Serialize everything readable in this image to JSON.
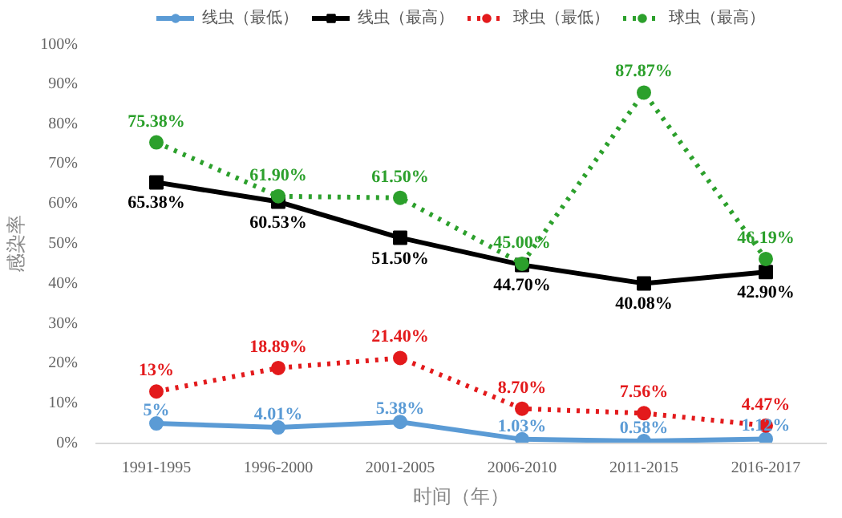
{
  "chart_data": {
    "type": "line",
    "xlabel": "时间（年）",
    "ylabel": "感染率",
    "categories": [
      "1991-1995",
      "1996-2000",
      "2001-2005",
      "2006-2010",
      "2011-2015",
      "2016-2017"
    ],
    "series": [
      {
        "name": "线虫（最低）",
        "color": "#5b9bd5",
        "marker": "circle",
        "line_style": "solid",
        "values": [
          5,
          4.01,
          5.38,
          1.03,
          0.58,
          1.12
        ],
        "value_labels": [
          "5%",
          "4.01%",
          "5.38%",
          "1.03%",
          "0.58%",
          "1.12%"
        ]
      },
      {
        "name": "线虫（最高）",
        "color": "#000000",
        "marker": "square",
        "line_style": "solid",
        "values": [
          65.38,
          60.53,
          51.5,
          44.7,
          40.08,
          42.9
        ],
        "value_labels": [
          "65.38%",
          "60.53%",
          "51.50%",
          "44.70%",
          "40.08%",
          "42.90%"
        ]
      },
      {
        "name": "球虫（最低）",
        "color": "#e31a1c",
        "marker": "circle",
        "line_style": "dotted",
        "values": [
          13,
          18.89,
          21.4,
          8.7,
          7.56,
          4.47
        ],
        "value_labels": [
          "13%",
          "18.89%",
          "21.40%",
          "8.70%",
          "7.56%",
          "4.47%"
        ]
      },
      {
        "name": "球虫（最高）",
        "color": "#2ca02c",
        "marker": "circle",
        "line_style": "dotted",
        "values": [
          75.38,
          61.9,
          61.5,
          45.0,
          87.87,
          46.19
        ],
        "value_labels": [
          "75.38%",
          "61.90%",
          "61.50%",
          "45.00%",
          "87.87%",
          "46.19%"
        ]
      }
    ],
    "ylim": [
      0,
      100
    ],
    "yticks": [
      {
        "value": 0,
        "label": "0%"
      },
      {
        "value": 10,
        "label": "10%"
      },
      {
        "value": 20,
        "label": "20%"
      },
      {
        "value": 30,
        "label": "30%"
      },
      {
        "value": 40,
        "label": "40%"
      },
      {
        "value": 50,
        "label": "50%"
      },
      {
        "value": 60,
        "label": "60%"
      },
      {
        "value": 70,
        "label": "70%"
      },
      {
        "value": 80,
        "label": "80%"
      },
      {
        "value": 90,
        "label": "90%"
      },
      {
        "value": 100,
        "label": "100%"
      }
    ],
    "grid": false,
    "legend": "top"
  }
}
